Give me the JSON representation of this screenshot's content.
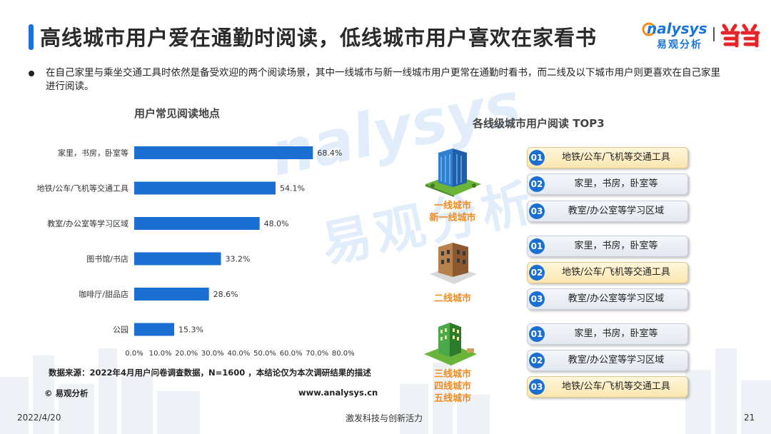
{
  "header": {
    "title": "高线城市用户爱在通勤时阅读，低线城市用户喜欢在家看书",
    "brand_en": "nalysys",
    "brand_cn": "易观分析"
  },
  "bullet": "在自己家里与乘坐交通工具时依然是备受欢迎的两个阅读场景，其中一线城市与新一线城市用户更常在通勤时看书，而二线及以下城市用户则更喜欢在自己家里进行阅读。",
  "left_chart_title": "用户常见阅读地点",
  "right_chart_title": "各线级城市用户阅读 TOP3",
  "chart_data": {
    "type": "bar",
    "orientation": "horizontal",
    "title": "用户常见阅读地点",
    "categories": [
      "家里，书房，卧室等",
      "地铁/公车/飞机等交通工具",
      "教室/办公室等学习区域",
      "图书馆/书店",
      "咖啡厅/甜品店",
      "公园"
    ],
    "values": [
      68.4,
      54.1,
      48.0,
      33.2,
      28.6,
      15.3
    ],
    "value_labels": [
      "68.4%",
      "54.1%",
      "48.0%",
      "33.2%",
      "28.6%",
      "15.3%"
    ],
    "xlim": [
      0,
      80
    ],
    "xticks": [
      "0.0%",
      "10.0%",
      "20.0%",
      "30.0%",
      "40.0%",
      "50.0%",
      "60.0%",
      "70.0%",
      "80.0%"
    ],
    "bar_color": "#1a6fd1"
  },
  "tiers": [
    {
      "label_lines": [
        "一线城市",
        "新一线城市"
      ],
      "ranks": [
        {
          "num": "01",
          "text": "地铁/公车/飞机等交通工具",
          "highlight": true
        },
        {
          "num": "02",
          "text": "家里，书房，卧室等",
          "highlight": false
        },
        {
          "num": "03",
          "text": "教室/办公室等学习区域",
          "highlight": false
        }
      ]
    },
    {
      "label_lines": [
        "二线城市"
      ],
      "ranks": [
        {
          "num": "01",
          "text": "家里，书房，卧室等",
          "highlight": false
        },
        {
          "num": "02",
          "text": "地铁/公车/飞机等交通工具",
          "highlight": true
        },
        {
          "num": "03",
          "text": "教室/办公室等学习区域",
          "highlight": false
        }
      ]
    },
    {
      "label_lines": [
        "三线城市",
        "四线城市",
        "五线城市"
      ],
      "ranks": [
        {
          "num": "01",
          "text": "家里，书房，卧室等",
          "highlight": false
        },
        {
          "num": "02",
          "text": "教室/办公室等学习区域",
          "highlight": false
        },
        {
          "num": "03",
          "text": "地铁/公车/飞机等交通工具",
          "highlight": true
        }
      ]
    }
  ],
  "source": "数据来源：2022年4月用户问卷调查数据，N=1600 ，本结论仅为本次调研结果的描述",
  "copyright": "© 易观分析",
  "website": "www.analysys.cn",
  "footer": {
    "date": "2022/4/20",
    "slogan": "激发科技与创新活力",
    "page": "21"
  },
  "colors": {
    "accent": "#1a73d8",
    "bar": "#1a6fd1",
    "tier_label": "#f18c1d",
    "highlight_box": "#fbe6b0"
  }
}
